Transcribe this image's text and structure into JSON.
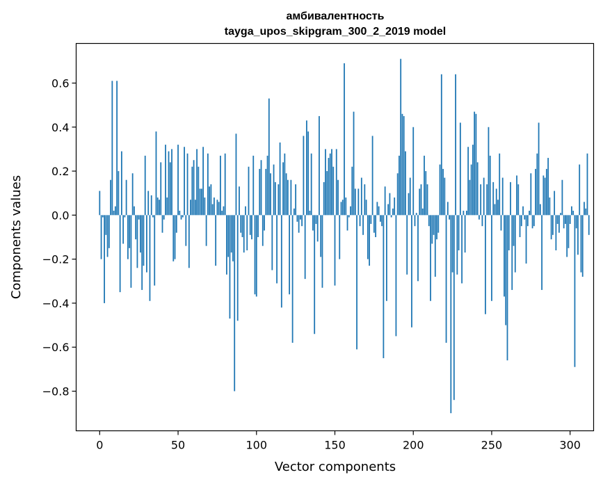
{
  "chart_data": {
    "type": "bar",
    "title": "амбивалентность",
    "subtitle": "tayga_upos_skipgram_300_2_2019 model",
    "xlabel": "Vector components",
    "ylabel": "Components values",
    "xlim": [
      -15,
      315
    ],
    "ylim": [
      -0.98,
      0.78
    ],
    "xticks": [
      0,
      50,
      100,
      150,
      200,
      250,
      300
    ],
    "yticks": [
      -0.8,
      -0.6,
      -0.4,
      -0.2,
      0.0,
      0.2,
      0.4,
      0.6
    ],
    "ytick_labels": [
      "−0.8",
      "−0.6",
      "−0.4",
      "−0.2",
      "0.0",
      "0.2",
      "0.4",
      "0.6"
    ],
    "bar_color": "#1f77b4",
    "grid": false,
    "legend": "none",
    "values": [
      0.11,
      -0.2,
      -0.01,
      -0.4,
      -0.09,
      -0.19,
      -0.15,
      0.16,
      0.61,
      0.02,
      0.04,
      0.61,
      0.2,
      -0.35,
      0.29,
      -0.13,
      -0.01,
      0.16,
      -0.2,
      -0.15,
      -0.33,
      0.19,
      0.04,
      -0.11,
      -0.24,
      -0.02,
      -0.17,
      -0.34,
      -0.23,
      0.27,
      -0.26,
      0.11,
      -0.39,
      0.09,
      -0.01,
      -0.32,
      0.38,
      0.08,
      0.07,
      0.24,
      -0.08,
      -0.02,
      0.32,
      0.08,
      0.29,
      0.24,
      0.3,
      -0.21,
      -0.2,
      -0.08,
      0.32,
      0.02,
      -0.02,
      -0.01,
      0.31,
      -0.14,
      0.28,
      -0.24,
      0.07,
      0.22,
      0.25,
      0.07,
      0.3,
      0.22,
      0.12,
      0.12,
      0.31,
      0.08,
      -0.14,
      0.28,
      0.13,
      0.14,
      0.05,
      0.08,
      -0.23,
      0.07,
      0.06,
      0.27,
      0.02,
      0.04,
      0.28,
      -0.27,
      -0.19,
      -0.47,
      -0.17,
      -0.21,
      -0.8,
      0.37,
      -0.48,
      0.13,
      -0.08,
      -0.1,
      -0.17,
      0.04,
      -0.16,
      0.22,
      -0.09,
      -0.11,
      0.27,
      -0.36,
      -0.37,
      -0.1,
      0.21,
      0.25,
      -0.14,
      -0.07,
      0.21,
      0.27,
      0.53,
      0.19,
      -0.25,
      0.23,
      0.15,
      -0.31,
      0.14,
      0.33,
      -0.42,
      0.24,
      0.28,
      0.19,
      0.16,
      -0.36,
      0.16,
      -0.58,
      0.03,
      0.14,
      -0.03,
      -0.08,
      -0.02,
      -0.05,
      0.36,
      -0.29,
      0.43,
      0.38,
      0.02,
      0.28,
      -0.07,
      -0.54,
      -0.04,
      -0.12,
      0.45,
      -0.19,
      -0.33,
      0.15,
      0.3,
      0.2,
      0.26,
      0.28,
      0.3,
      0.22,
      -0.32,
      0.3,
      0.16,
      -0.2,
      0.06,
      0.07,
      0.69,
      0.08,
      -0.07,
      -0.01,
      0.04,
      0.22,
      0.47,
      0.12,
      -0.61,
      0.12,
      -0.05,
      0.17,
      -0.09,
      0.14,
      0.07,
      -0.2,
      -0.23,
      -0.04,
      0.36,
      -0.08,
      -0.1,
      0.06,
      0.04,
      -0.03,
      -0.05,
      -0.65,
      0.13,
      -0.39,
      0.05,
      0.1,
      -0.01,
      0.03,
      0.08,
      -0.55,
      0.19,
      0.27,
      0.71,
      0.46,
      0.45,
      0.29,
      -0.27,
      0.1,
      0.17,
      -0.51,
      0.4,
      -0.05,
      0.01,
      -0.3,
      0.12,
      0.14,
      0.03,
      0.27,
      0.2,
      0.14,
      -0.05,
      -0.39,
      -0.13,
      -0.09,
      -0.28,
      -0.11,
      -0.08,
      0.23,
      0.64,
      0.21,
      0.17,
      -0.58,
      0.06,
      -0.02,
      -0.9,
      -0.26,
      -0.84,
      0.64,
      -0.27,
      -0.16,
      0.42,
      -0.31,
      0.02,
      -0.17,
      0.02,
      0.31,
      0.16,
      0.23,
      0.32,
      0.47,
      0.46,
      0.24,
      -0.02,
      0.14,
      -0.05,
      0.17,
      -0.45,
      0.14,
      0.4,
      0.27,
      -0.39,
      0.15,
      0.05,
      0.12,
      0.07,
      0.28,
      -0.07,
      0.17,
      -0.37,
      -0.5,
      -0.66,
      -0.16,
      0.15,
      -0.34,
      -0.14,
      -0.26,
      0.18,
      0.14,
      -0.1,
      -0.05,
      0.04,
      -0.02,
      -0.22,
      -0.05,
      0.02,
      0.19,
      -0.06,
      -0.05,
      0.21,
      0.28,
      0.42,
      0.05,
      -0.34,
      0.18,
      0.17,
      0.21,
      0.26,
      0.08,
      -0.11,
      -0.09,
      0.11,
      -0.16,
      -0.04,
      -0.08,
      0.01,
      0.16,
      -0.06,
      -0.04,
      -0.19,
      -0.15,
      -0.04,
      0.04,
      0.02,
      -0.69,
      -0.06,
      -0.18,
      0.23,
      -0.26,
      -0.28,
      0.06,
      0.03,
      0.28,
      -0.09
    ]
  }
}
